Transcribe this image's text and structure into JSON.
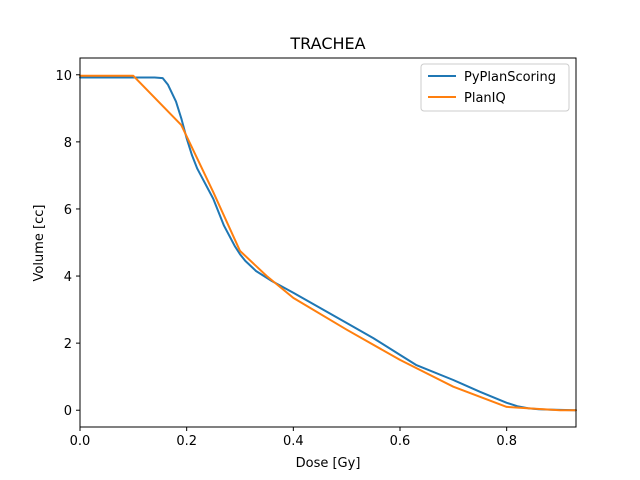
{
  "chart_data": {
    "type": "line",
    "title": "TRACHEA",
    "xlabel": "Dose [Gy]",
    "ylabel": "Volume [cc]",
    "xlim": [
      0,
      0.93
    ],
    "ylim": [
      -0.5,
      10.5
    ],
    "xticks": [
      0.0,
      0.2,
      0.4,
      0.6,
      0.8
    ],
    "xtick_labels": [
      "0.0",
      "0.2",
      "0.4",
      "0.6",
      "0.8"
    ],
    "yticks": [
      0,
      2,
      4,
      6,
      8,
      10
    ],
    "ytick_labels": [
      "0",
      "2",
      "4",
      "6",
      "8",
      "10"
    ],
    "grid": false,
    "legend_position": "top-right",
    "series": [
      {
        "name": "PyPlanScoring",
        "color": "#1f77b4",
        "x": [
          0.0,
          0.05,
          0.1,
          0.14,
          0.155,
          0.165,
          0.18,
          0.19,
          0.2,
          0.21,
          0.22,
          0.25,
          0.27,
          0.29,
          0.3,
          0.31,
          0.33,
          0.36,
          0.4,
          0.45,
          0.5,
          0.55,
          0.6,
          0.63,
          0.7,
          0.75,
          0.8,
          0.82,
          0.84,
          0.86,
          0.88,
          0.9,
          0.93
        ],
        "y": [
          9.92,
          9.92,
          9.92,
          9.92,
          9.9,
          9.7,
          9.2,
          8.7,
          8.1,
          7.6,
          7.2,
          6.3,
          5.5,
          4.9,
          4.65,
          4.45,
          4.15,
          3.85,
          3.5,
          3.05,
          2.6,
          2.15,
          1.65,
          1.35,
          0.9,
          0.55,
          0.22,
          0.12,
          0.06,
          0.03,
          0.02,
          0.01,
          0.0
        ]
      },
      {
        "name": "PlanIQ",
        "color": "#ff7f0e",
        "x": [
          0.0,
          0.05,
          0.1,
          0.19,
          0.25,
          0.3,
          0.35,
          0.4,
          0.5,
          0.6,
          0.7,
          0.8,
          0.85,
          0.9,
          0.93
        ],
        "y": [
          9.97,
          9.97,
          9.97,
          8.5,
          6.5,
          4.75,
          4.0,
          3.35,
          2.4,
          1.5,
          0.7,
          0.1,
          0.05,
          0.0,
          0.0
        ]
      }
    ]
  }
}
